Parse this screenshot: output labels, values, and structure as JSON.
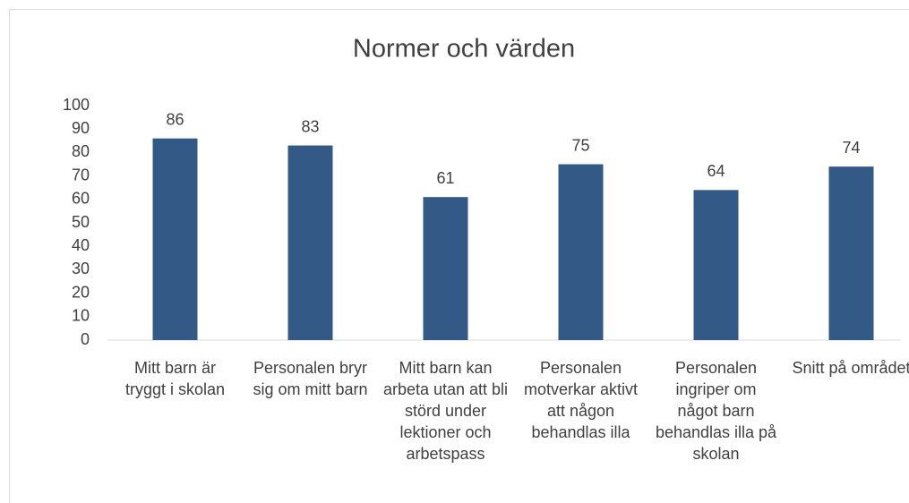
{
  "chart_data": {
    "type": "bar",
    "title": "Normer och värden",
    "categories": [
      "Mitt barn är tryggt i skolan",
      "Personalen bryr sig om mitt barn",
      "Mitt barn kan arbeta utan att bli störd under lektioner och arbetspass",
      "Personalen motverkar aktivt att någon behandlas illa",
      "Personalen ingriper om något barn behandlas illa på skolan",
      "Snitt på området"
    ],
    "values": [
      86,
      83,
      61,
      75,
      64,
      74
    ],
    "color": "#335a87",
    "ylim": [
      0,
      100
    ],
    "yticks": [
      0,
      10,
      20,
      30,
      40,
      50,
      60,
      70,
      80,
      90,
      100
    ]
  }
}
